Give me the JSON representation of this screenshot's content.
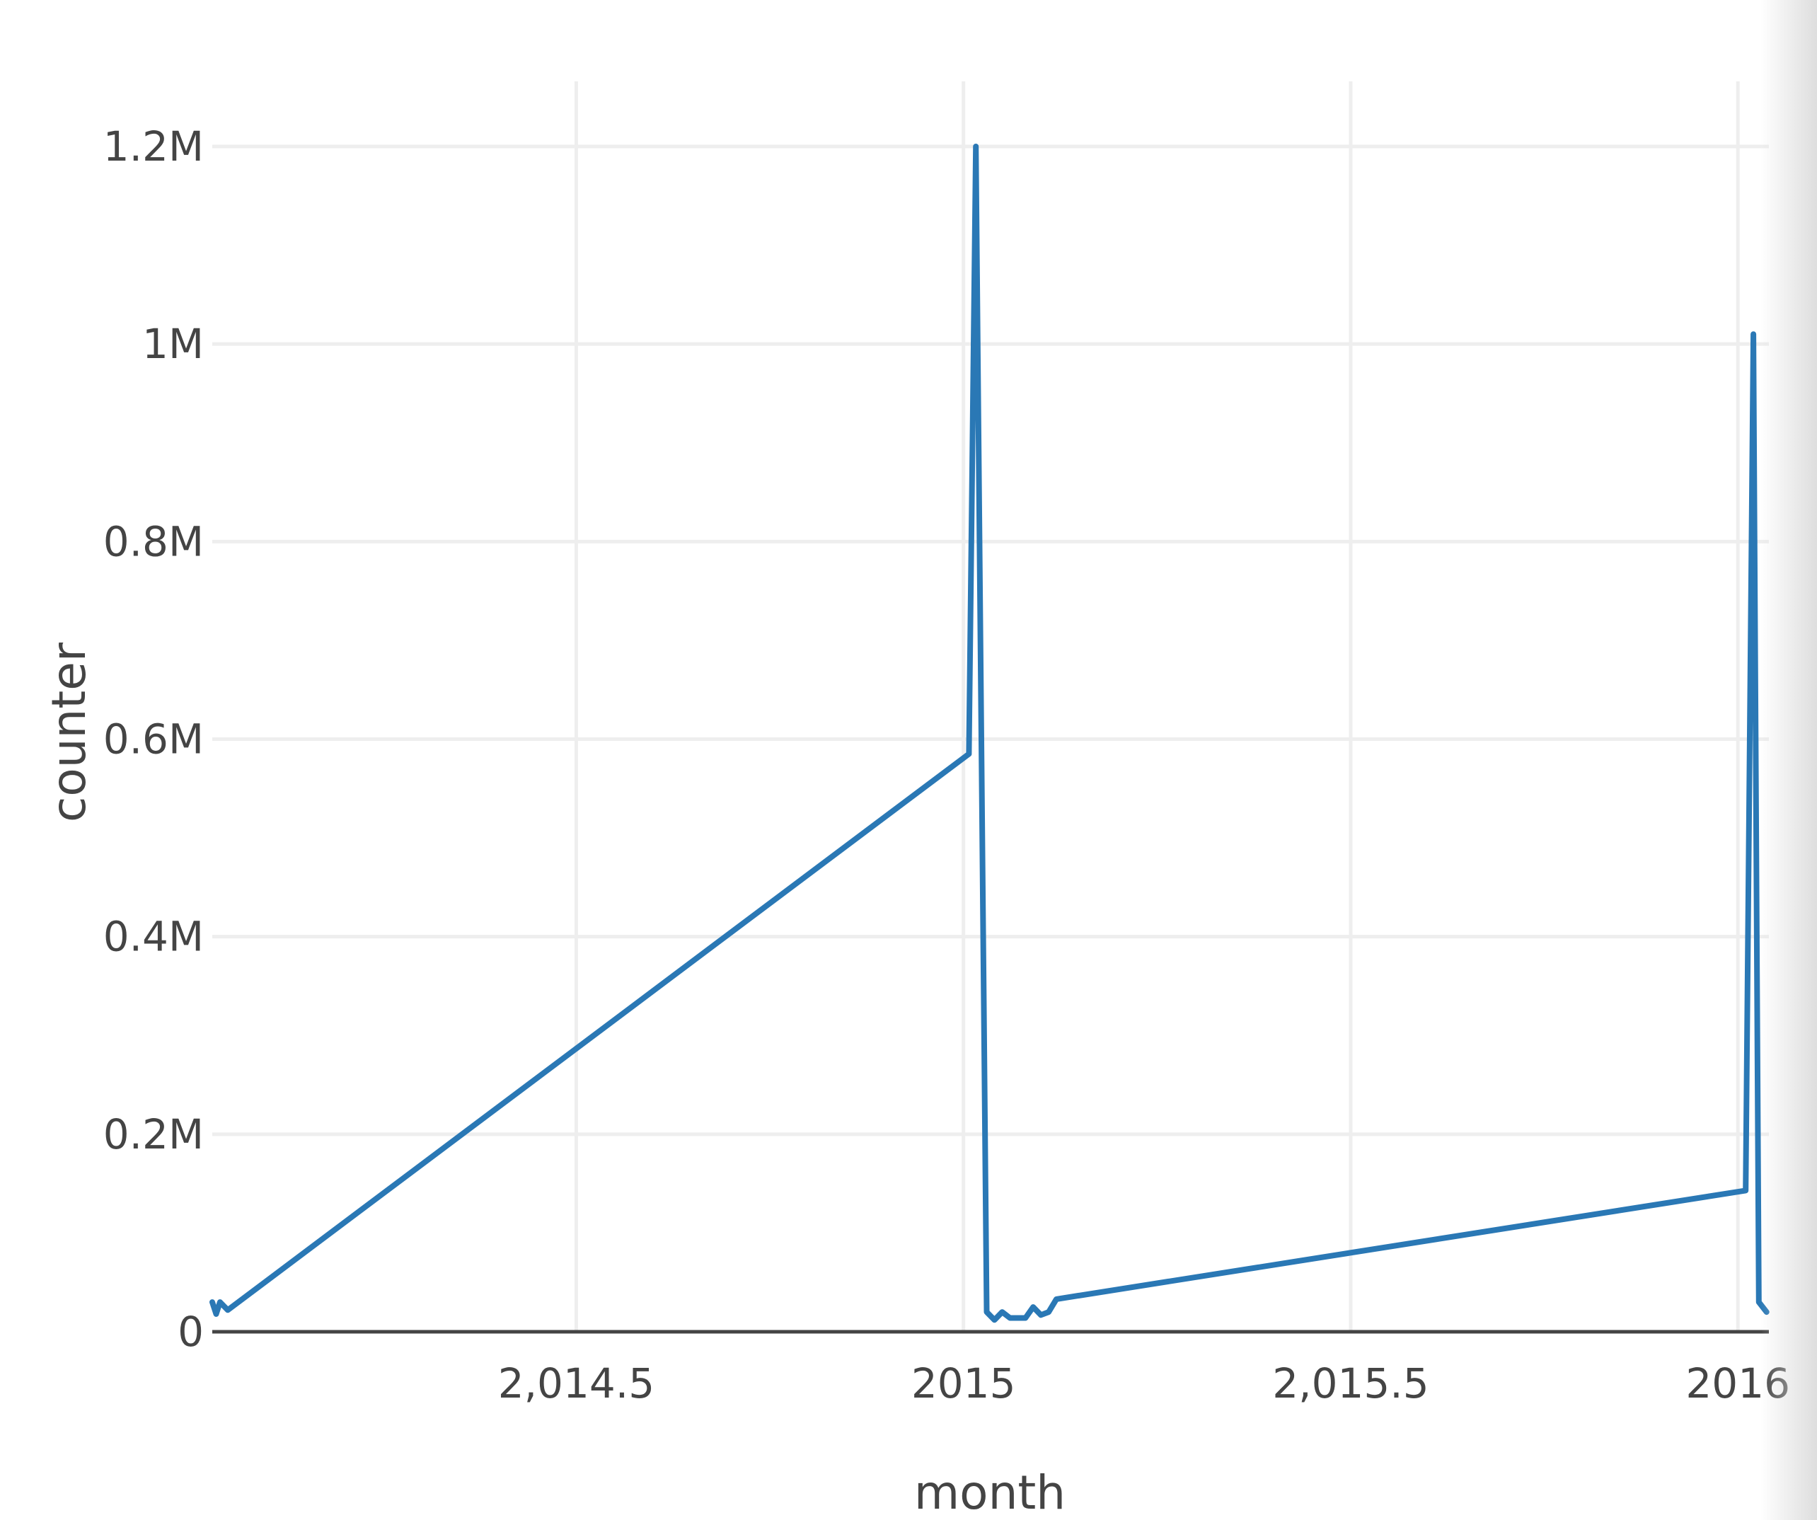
{
  "chart_data": {
    "type": "line",
    "xlabel": "month",
    "ylabel": "counter",
    "xlim": [
      2014.03,
      2016.04
    ],
    "ylim": [
      0,
      1200000
    ],
    "x_ticks": [
      {
        "value": 2014.5,
        "label": "2,014.5"
      },
      {
        "value": 2015,
        "label": "2015"
      },
      {
        "value": 2015.5,
        "label": "2,015.5"
      },
      {
        "value": 2016,
        "label": "2016"
      }
    ],
    "y_ticks": [
      {
        "value": 0,
        "label": "0"
      },
      {
        "value": 200000,
        "label": "0.2M"
      },
      {
        "value": 400000,
        "label": "0.4M"
      },
      {
        "value": 600000,
        "label": "0.6M"
      },
      {
        "value": 800000,
        "label": "0.8M"
      },
      {
        "value": 1000000,
        "label": "1M"
      },
      {
        "value": 1200000,
        "label": "1.2M"
      }
    ],
    "grid": true,
    "colors": {
      "line": "#2a78b5"
    },
    "series": [
      {
        "x": [
          2014.03,
          2014.035,
          2014.04,
          2014.05,
          2015.007,
          2015.016,
          2015.03,
          2015.04,
          2015.05,
          2015.06,
          2015.07,
          2015.08,
          2015.09,
          2015.1,
          2015.11,
          2015.12,
          2016.01,
          2016.02,
          2016.027,
          2016.037
        ],
        "y": [
          30000,
          18000,
          30000,
          22000,
          585000,
          1200000,
          20000,
          12000,
          20000,
          14000,
          14000,
          14000,
          25000,
          17000,
          20000,
          33000,
          143000,
          1010000,
          30000,
          20000
        ]
      }
    ]
  }
}
